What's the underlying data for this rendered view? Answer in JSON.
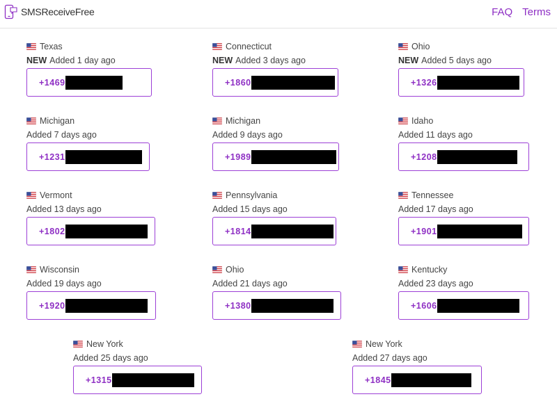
{
  "header": {
    "site_name": "SMSReceiveFree",
    "nav": [
      {
        "label": "FAQ"
      },
      {
        "label": "Terms"
      }
    ]
  },
  "colors": {
    "accent": "#8e2fc4",
    "border": "#9c3fd6"
  },
  "new_label": "NEW",
  "cards": [
    {
      "state": "Texas",
      "new": true,
      "added": "Added 1 day ago",
      "number_prefix": "+1469"
    },
    {
      "state": "Connecticut",
      "new": true,
      "added": "Added 3 days ago",
      "number_prefix": "+1860"
    },
    {
      "state": "Ohio",
      "new": true,
      "added": "Added 5 days ago",
      "number_prefix": "+1326"
    },
    {
      "state": "Michigan",
      "new": false,
      "added": "Added 7 days ago",
      "number_prefix": "+1231"
    },
    {
      "state": "Michigan",
      "new": false,
      "added": "Added 9 days ago",
      "number_prefix": "+1989"
    },
    {
      "state": "Idaho",
      "new": false,
      "added": "Added 11 days ago",
      "number_prefix": "+1208"
    },
    {
      "state": "Vermont",
      "new": false,
      "added": "Added 13 days ago",
      "number_prefix": "+1802"
    },
    {
      "state": "Pennsylvania",
      "new": false,
      "added": "Added 15 days ago",
      "number_prefix": "+1814"
    },
    {
      "state": "Tennessee",
      "new": false,
      "added": "Added 17 days ago",
      "number_prefix": "+1901"
    },
    {
      "state": "Wisconsin",
      "new": false,
      "added": "Added 19 days ago",
      "number_prefix": "+1920"
    },
    {
      "state": "Ohio",
      "new": false,
      "added": "Added 21 days ago",
      "number_prefix": "+1380"
    },
    {
      "state": "Kentucky",
      "new": false,
      "added": "Added 23 days ago",
      "number_prefix": "+1606"
    },
    {
      "state": "New York",
      "new": false,
      "added": "Added 25 days ago",
      "number_prefix": "+1315"
    },
    {
      "state": "New York",
      "new": false,
      "added": "Added 27 days ago",
      "number_prefix": "+1845"
    }
  ]
}
